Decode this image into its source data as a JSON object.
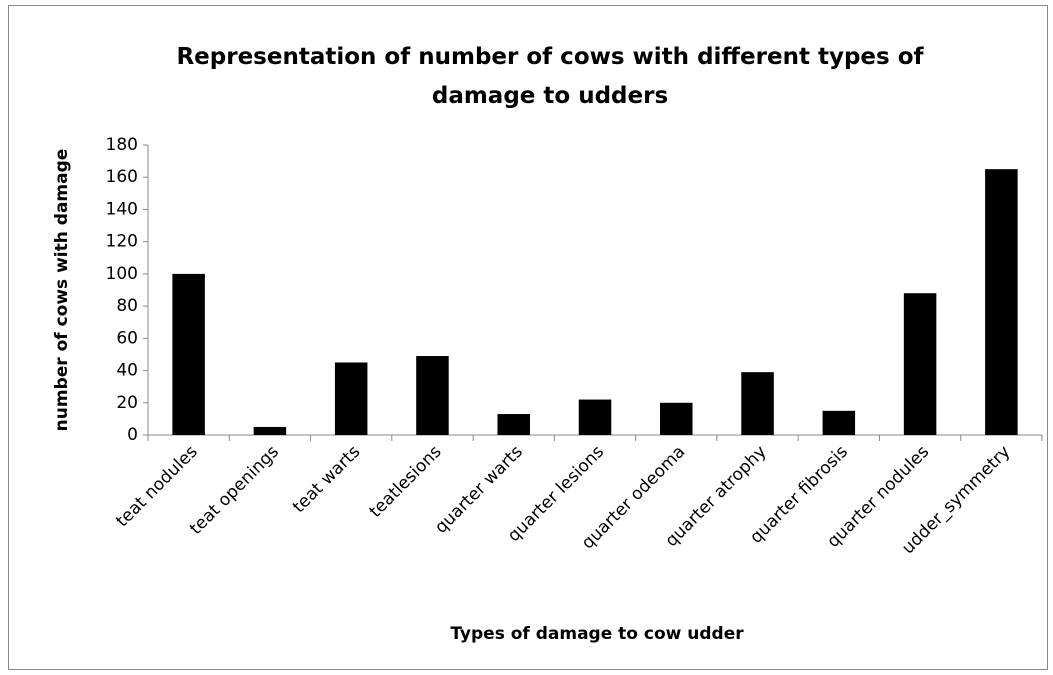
{
  "chart_data": {
    "type": "bar",
    "title": "Representation of number of cows with different types of damage to udders",
    "x_label": "Types of damage to cow udder",
    "y_label": "number of cows with damage",
    "categories": [
      "teat nodules",
      "teat openings",
      "teat warts",
      "teatlesions",
      "quarter warts",
      "quarter lesions",
      "quarter odeoma",
      "quarter atrophy",
      "quarter fibrosis",
      "quarter nodules",
      "udder_symmetry"
    ],
    "values": [
      100,
      5,
      45,
      49,
      13,
      22,
      20,
      39,
      15,
      88,
      165
    ],
    "color": "#000000",
    "ylim": [
      0,
      180
    ],
    "yticks": [
      0,
      20,
      40,
      60,
      80,
      100,
      120,
      140,
      160,
      180
    ],
    "grid": false
  }
}
